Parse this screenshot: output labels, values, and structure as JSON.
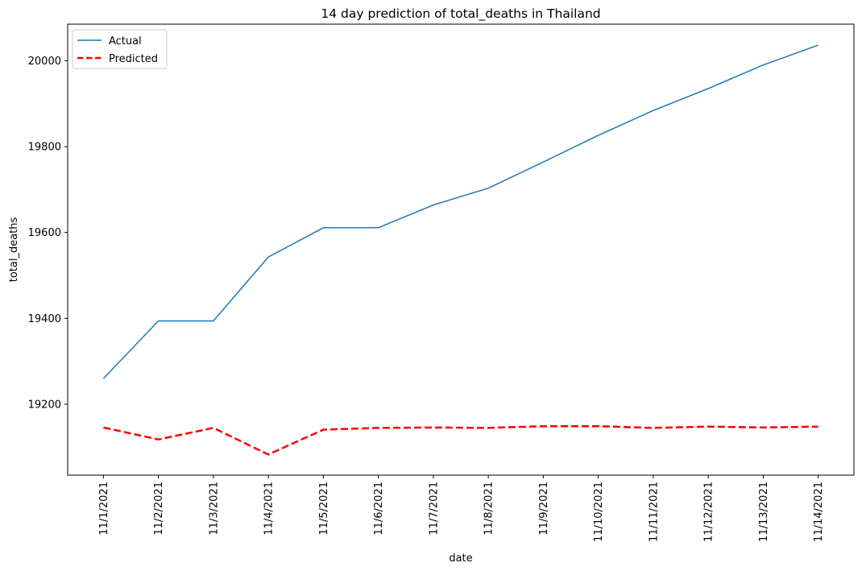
{
  "chart_data": {
    "type": "line",
    "title": "14 day prediction of total_deaths in Thailand",
    "xlabel": "date",
    "ylabel": "total_deaths",
    "categories": [
      "11/1/2021",
      "11/2/2021",
      "11/3/2021",
      "11/4/2021",
      "11/5/2021",
      "11/6/2021",
      "11/7/2021",
      "11/8/2021",
      "11/9/2021",
      "11/10/2021",
      "11/11/2021",
      "11/12/2021",
      "11/13/2021",
      "11/14/2021"
    ],
    "yticks": [
      19200,
      19400,
      19600,
      19800,
      20000
    ],
    "ylim": [
      19035,
      20085
    ],
    "grid": false,
    "legend_position": "upper-left",
    "series": [
      {
        "name": "Actual",
        "color": "#1f77b4",
        "style": "solid",
        "values": [
          19260,
          19394,
          19394,
          19543,
          19611,
          19611,
          19664,
          19703,
          19764,
          19826,
          19884,
          19935,
          19990,
          20036
        ]
      },
      {
        "name": "Predicted",
        "color": "#ff0000",
        "style": "dashed",
        "values": [
          19146,
          19118,
          19145,
          19083,
          19141,
          19145,
          19146,
          19145,
          19149,
          19149,
          19145,
          19148,
          19146,
          19148
        ]
      }
    ]
  }
}
